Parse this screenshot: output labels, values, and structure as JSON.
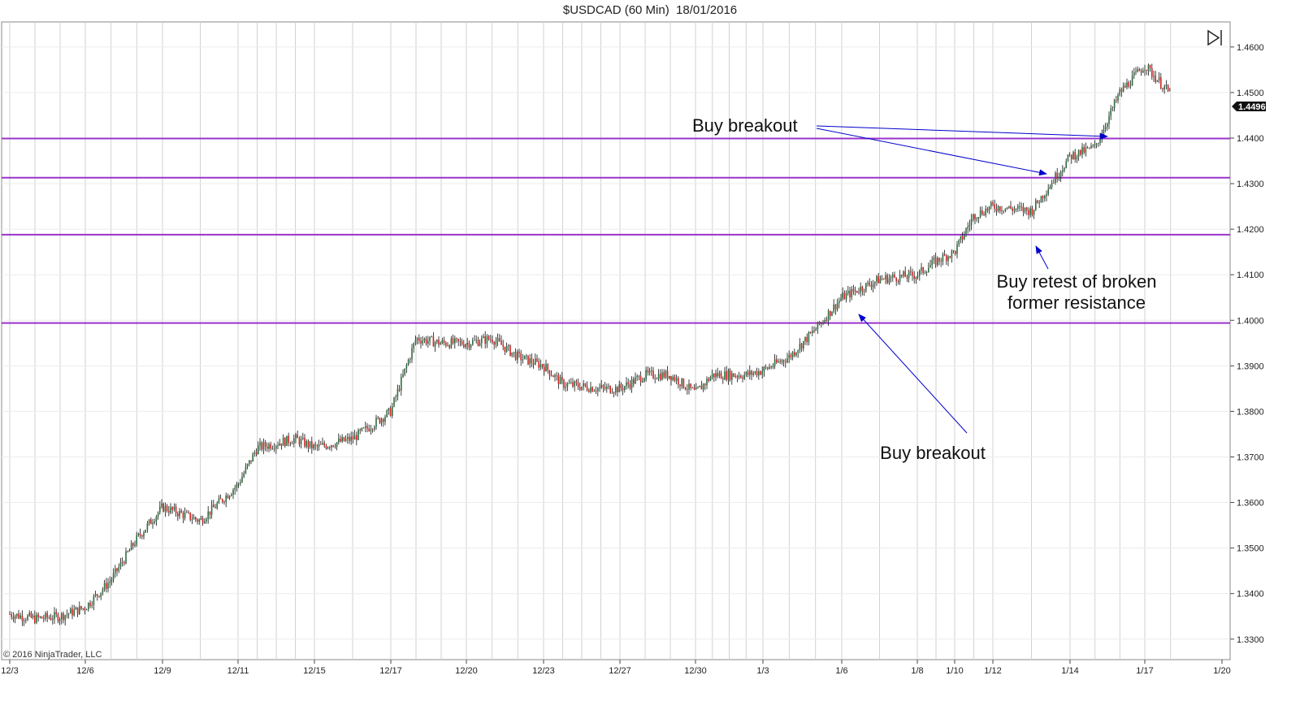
{
  "title": "$USDCAD (60 Min)  18/01/2016",
  "copyright": "© 2016 NinjaTrader, LLC",
  "last_price": "1.4496",
  "icons": {
    "play_end": "play-to-end-icon"
  },
  "colors": {
    "level_line": "#9933cc",
    "annotation_arrow": "#0000cc",
    "grid": "#d2d2d2",
    "up_candle": "#2e6b3e",
    "down_candle": "#cc2222"
  },
  "annotations": [
    {
      "id": "buy-breakout-top",
      "text": "Buy breakout"
    },
    {
      "id": "buy-retest",
      "lines": [
        "Buy retest of broken",
        "former resistance"
      ]
    },
    {
      "id": "buy-breakout-bottom",
      "text": "Buy breakout"
    }
  ],
  "chart_data": {
    "type": "candlestick",
    "title": "$USDCAD (60 Min)  18/01/2016",
    "x_ticks": [
      "12/3",
      "12/6",
      "12/9",
      "12/11",
      "12/15",
      "12/17",
      "12/20",
      "12/23",
      "12/27",
      "12/30",
      "1/3",
      "1/6",
      "1/8",
      "1/10",
      "1/12",
      "1/14",
      "1/17",
      "1/20"
    ],
    "y_ticks": [
      "1.3300",
      "1.3400",
      "1.3500",
      "1.3600",
      "1.3700",
      "1.3800",
      "1.3900",
      "1.4000",
      "1.4100",
      "1.4200",
      "1.4300",
      "1.4400",
      "1.4500",
      "1.4600"
    ],
    "ylim": [
      1.3255,
      1.4655
    ],
    "horizontal_levels": [
      1.4399,
      1.4313,
      1.4188,
      1.3994
    ],
    "price_path": [
      [
        "12/3",
        1.3355
      ],
      [
        "12/4",
        1.3345
      ],
      [
        "12/5",
        1.335
      ],
      [
        "12/6",
        1.337
      ],
      [
        "12/7",
        1.343
      ],
      [
        "12/8",
        1.352
      ],
      [
        "12/9",
        1.359
      ],
      [
        "12/10",
        1.356
      ],
      [
        "12/11",
        1.364
      ],
      [
        "12/12",
        1.372
      ],
      [
        "12/14",
        1.374
      ],
      [
        "12/15",
        1.372
      ],
      [
        "12/16",
        1.374
      ],
      [
        "12/17",
        1.38
      ],
      [
        "12/18",
        1.396
      ],
      [
        "12/19",
        1.395
      ],
      [
        "12/20",
        1.395
      ],
      [
        "12/21",
        1.396
      ],
      [
        "12/22",
        1.392
      ],
      [
        "12/23",
        1.39
      ],
      [
        "12/24",
        1.386
      ],
      [
        "12/26",
        1.385
      ],
      [
        "12/27",
        1.385
      ],
      [
        "12/28",
        1.388
      ],
      [
        "12/29",
        1.388
      ],
      [
        "12/30",
        1.384
      ],
      [
        "12/31",
        1.388
      ],
      [
        "1/2",
        1.388
      ],
      [
        "1/3",
        1.389
      ],
      [
        "1/4",
        1.392
      ],
      [
        "1/5",
        1.398
      ],
      [
        "1/6",
        1.405
      ],
      [
        "1/7",
        1.409
      ],
      [
        "1/8",
        1.41
      ],
      [
        "1/9",
        1.413
      ],
      [
        "1/10",
        1.415
      ],
      [
        "1/11",
        1.423
      ],
      [
        "1/12",
        1.425
      ],
      [
        "1/13",
        1.424
      ],
      [
        "1/14",
        1.436
      ],
      [
        "1/15",
        1.438
      ],
      [
        "1/16",
        1.45
      ],
      [
        "1/17",
        1.456
      ],
      [
        "1/18",
        1.4496
      ]
    ],
    "grid": true
  }
}
